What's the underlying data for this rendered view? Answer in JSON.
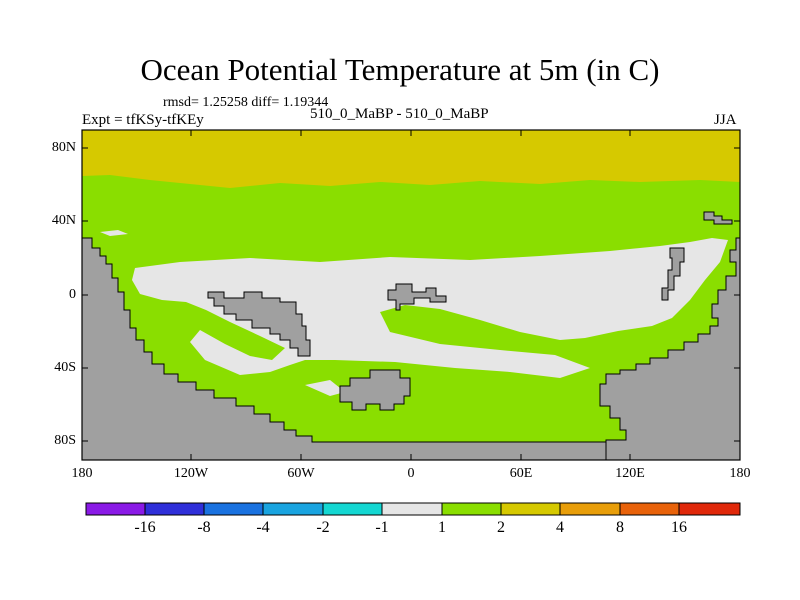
{
  "title": "Ocean Potential Temperature at 5m (in C)",
  "stats": "rmsd= 1.25258 diff= 1.19344",
  "experiment": "Expt = tfKSy-tfKEy",
  "case": "510_0_MaBP - 510_0_MaBP",
  "season": "JJA",
  "y_axis_labels": [
    "80N",
    "40N",
    "0",
    "40S",
    "80S"
  ],
  "x_axis_labels": [
    "180",
    "120W",
    "60W",
    "0",
    "60E",
    "120E",
    "180"
  ],
  "legend": {
    "labels": [
      "-16",
      "-8",
      "-4",
      "-2",
      "-1",
      "1",
      "2",
      "4",
      "8",
      "16"
    ],
    "colors": [
      "#8a1ae6",
      "#2f2fd9",
      "#1a72e0",
      "#19a4e0",
      "#14d7d2",
      "#e6e6e6",
      "#8ade00",
      "#d6c900",
      "#e89e0a",
      "#e8620a",
      "#e0280a"
    ]
  },
  "colors": {
    "land": "#a0a0a0",
    "band_1_2": "#8ade00",
    "band_2_4": "#d6c900",
    "band_neg1_1": "#e6e6e6"
  }
}
